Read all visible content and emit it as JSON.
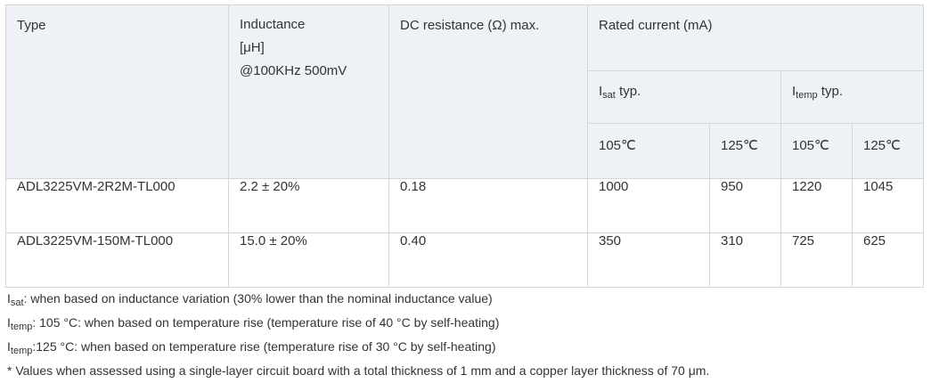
{
  "header": {
    "type": "Type",
    "inductance_line1": "Inductance",
    "inductance_line2": "[μH]",
    "inductance_line3": "@100KHz 500mV",
    "dc_resistance": "DC resistance (Ω) max.",
    "rated_current": "Rated current (mA)",
    "isat_symbol": "I",
    "isat_sub": "sat",
    "isat_suffix": " typ.",
    "itemp_symbol": "I",
    "itemp_sub": "temp",
    "itemp_suffix": " typ.",
    "temp_105": "105℃",
    "temp_125": "125℃"
  },
  "rows": [
    {
      "type": "ADL3225VM-2R2M-TL000",
      "inductance": "2.2 ± 20%",
      "dc_resistance": "0.18",
      "isat_105": "1000",
      "isat_125": "950",
      "itemp_105": "1220",
      "itemp_125": "1045"
    },
    {
      "type": "ADL3225VM-150M-TL000",
      "inductance": "15.0 ± 20%",
      "dc_resistance": "0.40",
      "isat_105": "350",
      "isat_125": "310",
      "itemp_105": "725",
      "itemp_125": "625"
    }
  ],
  "notes": {
    "n1_sym": "I",
    "n1_sub": "sat",
    "n1_text": ": when based on inductance variation (30% lower than the nominal inductance value)",
    "n2_sym": "I",
    "n2_sub": "temp",
    "n2_text": ": 105 °C: when based on temperature rise (temperature rise of 40 °C by self-heating)",
    "n3_sym": "I",
    "n3_sub": "temp",
    "n3_text": ":125 °C: when based on temperature rise (temperature rise of 30 °C by self-heating)",
    "n4_text": "* Values when assessed using a single-layer circuit board with a total thickness of 1 mm and a copper layer thickness of 70 μm."
  }
}
